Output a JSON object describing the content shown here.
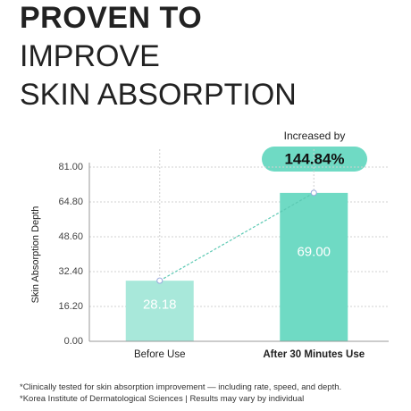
{
  "chart_data": {
    "type": "bar",
    "title": [
      "PROVEN TO",
      "IMPROVE",
      "SKIN ABSORPTION"
    ],
    "y_label": "Skin Absorption Depth",
    "categories": [
      "Before Use",
      "After 30 Minutes Use"
    ],
    "values": [
      28.18,
      69
    ],
    "value_labels": [
      "28.18",
      "69.00"
    ],
    "colors": [
      "#a8e8da",
      "#6fdac4"
    ],
    "ylim": [
      0,
      81
    ],
    "yticks": [
      {
        "value": 0,
        "label": "0.00"
      },
      {
        "value": 16.2,
        "label": "16.20"
      },
      {
        "value": 32.4,
        "label": "32.40"
      },
      {
        "value": 48.6,
        "label": "48.60"
      },
      {
        "value": 64.8,
        "label": "64.80"
      },
      {
        "value": 81,
        "label": "81.00"
      }
    ],
    "grid": true,
    "annotation": {
      "text": "Increased by",
      "value": "144.84%"
    },
    "footnotes": [
      "*Clinically tested for skin absorption improvement — including rate, speed, and depth.",
      "*Korea Institute of Dermatological Sciences | Results may vary by individual"
    ]
  }
}
